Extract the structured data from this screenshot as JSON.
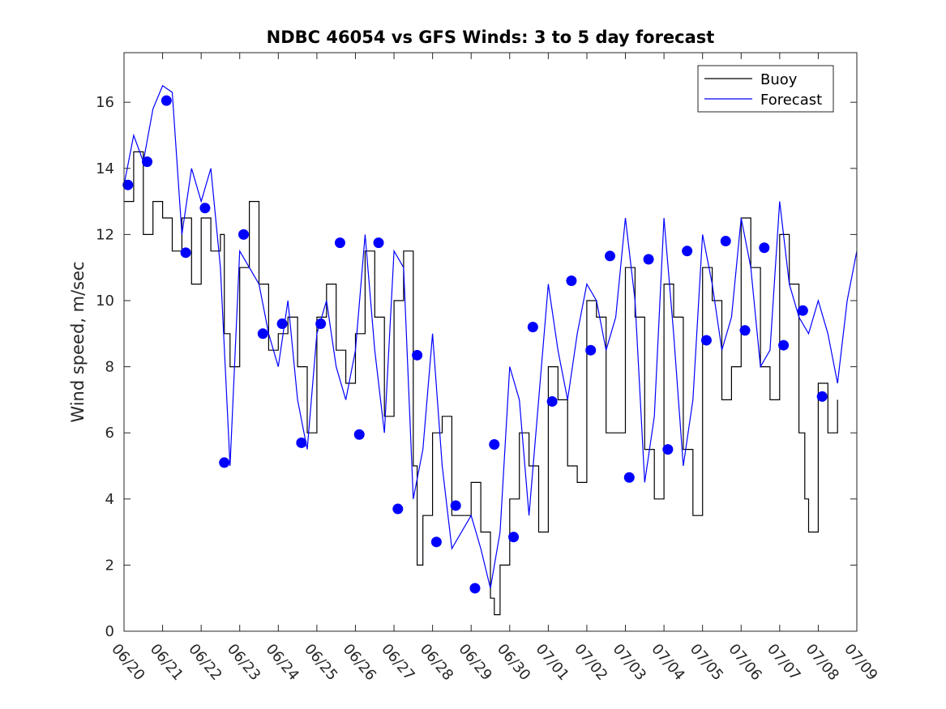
{
  "chart_data": {
    "type": "line",
    "title": "NDBC 46054 vs GFS Winds: 3 to 5 day forecast",
    "xlabel": "",
    "ylabel": "Wind speed, m/sec",
    "xlim_days": [
      0,
      19
    ],
    "x_tick_labels": [
      "06/20",
      "06/21",
      "06/22",
      "06/23",
      "06/24",
      "06/25",
      "06/26",
      "06/27",
      "06/28",
      "06/29",
      "06/30",
      "07/01",
      "07/02",
      "07/03",
      "07/04",
      "07/05",
      "07/06",
      "07/07",
      "07/08",
      "07/09"
    ],
    "ylim": [
      0,
      17.5
    ],
    "y_ticks": [
      0,
      2,
      4,
      6,
      8,
      10,
      12,
      14,
      16
    ],
    "grid": false,
    "legend": {
      "position": "top-right",
      "entries": [
        {
          "label": "Buoy",
          "color": "#000000"
        },
        {
          "label": "Forecast",
          "color": "#0000ff"
        }
      ]
    },
    "colors": {
      "buoy": "#000000",
      "forecast": "#0000ff",
      "marker": "#0000ff"
    },
    "series": [
      {
        "name": "Buoy",
        "color": "#000000",
        "points": [
          [
            0.0,
            13.0
          ],
          [
            0.25,
            14.5
          ],
          [
            0.5,
            12.0
          ],
          [
            0.75,
            13.0
          ],
          [
            1.0,
            12.5
          ],
          [
            1.25,
            11.5
          ],
          [
            1.5,
            12.5
          ],
          [
            1.75,
            10.5
          ],
          [
            2.0,
            12.5
          ],
          [
            2.25,
            11.5
          ],
          [
            2.5,
            12.0
          ],
          [
            2.6,
            9.0
          ],
          [
            2.75,
            8.0
          ],
          [
            3.0,
            11.0
          ],
          [
            3.25,
            13.0
          ],
          [
            3.5,
            10.5
          ],
          [
            3.75,
            8.5
          ],
          [
            4.0,
            9.0
          ],
          [
            4.25,
            9.5
          ],
          [
            4.5,
            8.0
          ],
          [
            4.75,
            6.0
          ],
          [
            5.0,
            9.5
          ],
          [
            5.25,
            10.5
          ],
          [
            5.5,
            8.5
          ],
          [
            5.75,
            7.5
          ],
          [
            6.0,
            9.0
          ],
          [
            6.25,
            11.5
          ],
          [
            6.5,
            9.5
          ],
          [
            6.75,
            6.5
          ],
          [
            7.0,
            10.0
          ],
          [
            7.25,
            11.5
          ],
          [
            7.5,
            5.0
          ],
          [
            7.6,
            2.0
          ],
          [
            7.75,
            3.5
          ],
          [
            8.0,
            6.0
          ],
          [
            8.25,
            6.5
          ],
          [
            8.5,
            3.5
          ],
          [
            8.75,
            3.5
          ],
          [
            9.0,
            4.5
          ],
          [
            9.25,
            3.0
          ],
          [
            9.5,
            1.0
          ],
          [
            9.6,
            0.5
          ],
          [
            9.75,
            2.0
          ],
          [
            10.0,
            4.0
          ],
          [
            10.25,
            6.0
          ],
          [
            10.5,
            5.0
          ],
          [
            10.75,
            3.0
          ],
          [
            11.0,
            8.0
          ],
          [
            11.25,
            7.0
          ],
          [
            11.5,
            5.0
          ],
          [
            11.75,
            4.5
          ],
          [
            12.0,
            10.0
          ],
          [
            12.25,
            9.5
          ],
          [
            12.5,
            6.0
          ],
          [
            12.75,
            6.0
          ],
          [
            13.0,
            11.0
          ],
          [
            13.25,
            9.5
          ],
          [
            13.5,
            5.5
          ],
          [
            13.75,
            4.0
          ],
          [
            14.0,
            10.5
          ],
          [
            14.25,
            9.5
          ],
          [
            14.5,
            5.5
          ],
          [
            14.75,
            3.5
          ],
          [
            15.0,
            11.0
          ],
          [
            15.25,
            10.0
          ],
          [
            15.5,
            7.0
          ],
          [
            15.75,
            8.0
          ],
          [
            16.0,
            12.5
          ],
          [
            16.25,
            11.0
          ],
          [
            16.5,
            8.0
          ],
          [
            16.75,
            7.0
          ],
          [
            17.0,
            12.0
          ],
          [
            17.25,
            10.5
          ],
          [
            17.5,
            6.0
          ],
          [
            17.65,
            4.0
          ],
          [
            17.75,
            3.0
          ],
          [
            18.0,
            7.5
          ],
          [
            18.25,
            6.0
          ],
          [
            18.5,
            7.0
          ]
        ]
      },
      {
        "name": "Forecast",
        "color": "#0000ff",
        "points": [
          [
            0.0,
            13.5
          ],
          [
            0.25,
            15.0
          ],
          [
            0.5,
            14.2
          ],
          [
            0.75,
            15.8
          ],
          [
            1.0,
            16.5
          ],
          [
            1.25,
            16.3
          ],
          [
            1.5,
            12.0
          ],
          [
            1.75,
            14.0
          ],
          [
            2.0,
            13.0
          ],
          [
            2.25,
            14.0
          ],
          [
            2.5,
            11.0
          ],
          [
            2.75,
            5.0
          ],
          [
            3.0,
            11.5
          ],
          [
            3.25,
            11.0
          ],
          [
            3.5,
            10.5
          ],
          [
            3.75,
            9.0
          ],
          [
            4.0,
            8.0
          ],
          [
            4.25,
            10.0
          ],
          [
            4.5,
            7.0
          ],
          [
            4.75,
            5.5
          ],
          [
            5.0,
            9.0
          ],
          [
            5.25,
            10.0
          ],
          [
            5.5,
            8.0
          ],
          [
            5.75,
            7.0
          ],
          [
            6.0,
            8.5
          ],
          [
            6.25,
            12.0
          ],
          [
            6.5,
            8.5
          ],
          [
            6.75,
            6.0
          ],
          [
            7.0,
            11.5
          ],
          [
            7.25,
            11.0
          ],
          [
            7.5,
            4.0
          ],
          [
            7.75,
            5.5
          ],
          [
            8.0,
            9.0
          ],
          [
            8.25,
            5.0
          ],
          [
            8.5,
            2.5
          ],
          [
            8.75,
            3.0
          ],
          [
            9.0,
            3.5
          ],
          [
            9.25,
            2.5
          ],
          [
            9.5,
            1.3
          ],
          [
            9.75,
            3.0
          ],
          [
            10.0,
            8.0
          ],
          [
            10.25,
            7.0
          ],
          [
            10.5,
            3.5
          ],
          [
            10.75,
            7.0
          ],
          [
            11.0,
            10.5
          ],
          [
            11.25,
            8.5
          ],
          [
            11.5,
            7.0
          ],
          [
            11.75,
            9.0
          ],
          [
            12.0,
            10.5
          ],
          [
            12.25,
            10.0
          ],
          [
            12.5,
            8.5
          ],
          [
            12.75,
            9.5
          ],
          [
            13.0,
            12.5
          ],
          [
            13.25,
            10.0
          ],
          [
            13.5,
            4.5
          ],
          [
            13.75,
            6.5
          ],
          [
            14.0,
            12.5
          ],
          [
            14.25,
            9.0
          ],
          [
            14.5,
            5.0
          ],
          [
            14.75,
            7.0
          ],
          [
            15.0,
            12.0
          ],
          [
            15.25,
            10.5
          ],
          [
            15.5,
            8.5
          ],
          [
            15.75,
            9.5
          ],
          [
            16.0,
            12.5
          ],
          [
            16.25,
            11.0
          ],
          [
            16.5,
            8.0
          ],
          [
            16.75,
            8.5
          ],
          [
            17.0,
            13.0
          ],
          [
            17.25,
            10.5
          ],
          [
            17.5,
            9.5
          ],
          [
            17.75,
            9.0
          ],
          [
            18.0,
            10.0
          ],
          [
            18.25,
            9.0
          ],
          [
            18.5,
            7.5
          ],
          [
            18.75,
            10.0
          ],
          [
            19.0,
            11.5
          ]
        ]
      },
      {
        "name": "",
        "color": "#0000ff",
        "type": "scatter",
        "points": [
          [
            0.1,
            13.5
          ],
          [
            0.6,
            14.2
          ],
          [
            1.1,
            16.05
          ],
          [
            1.6,
            11.45
          ],
          [
            2.1,
            12.8
          ],
          [
            2.6,
            5.1
          ],
          [
            3.1,
            12.0
          ],
          [
            3.6,
            9.0
          ],
          [
            4.1,
            9.3
          ],
          [
            4.6,
            5.7
          ],
          [
            5.1,
            9.3
          ],
          [
            5.6,
            11.75
          ],
          [
            6.1,
            5.95
          ],
          [
            6.6,
            11.75
          ],
          [
            7.1,
            3.7
          ],
          [
            7.6,
            8.35
          ],
          [
            8.1,
            2.7
          ],
          [
            8.6,
            3.8
          ],
          [
            9.1,
            1.3
          ],
          [
            9.6,
            5.65
          ],
          [
            10.1,
            2.85
          ],
          [
            10.6,
            9.2
          ],
          [
            11.1,
            6.95
          ],
          [
            11.6,
            10.6
          ],
          [
            12.1,
            8.5
          ],
          [
            12.6,
            11.35
          ],
          [
            13.1,
            4.65
          ],
          [
            13.6,
            11.25
          ],
          [
            14.1,
            5.5
          ],
          [
            14.6,
            11.5
          ],
          [
            15.1,
            8.8
          ],
          [
            15.6,
            11.8
          ],
          [
            16.1,
            9.1
          ],
          [
            16.6,
            11.6
          ],
          [
            17.1,
            8.65
          ],
          [
            17.6,
            9.7
          ],
          [
            18.1,
            7.1
          ]
        ]
      }
    ]
  }
}
